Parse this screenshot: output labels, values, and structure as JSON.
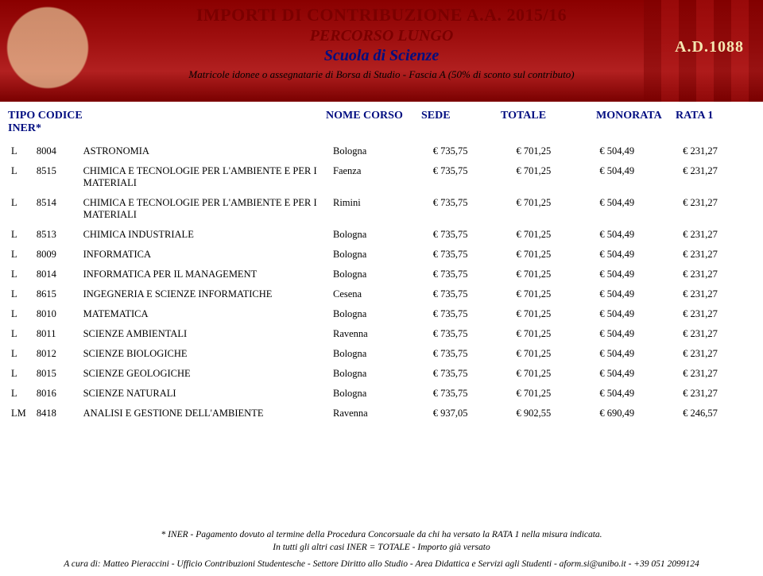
{
  "banner": {
    "title1": "IMPORTI DI CONTRIBUZIONE A.A. 2015/16",
    "title2": "PERCORSO LUNGO",
    "title3": "Scuola di Scienze",
    "title4": "Matricole idonee o assegnatarie di Borsa di Studio - Fascia A (50% di sconto sul contributo)",
    "seal_text": "A.D.1088",
    "colors": {
      "banner_bg_top": "#8a0000",
      "banner_bg_mid": "#b22020",
      "banner_bg_bot": "#7a0000",
      "title_red": "#7a0000",
      "title_blue": "#000d80",
      "seal_gold": "#f5e6b0"
    }
  },
  "headers": {
    "tipo": "TIPO",
    "codice": "CODICE",
    "nome": "NOME CORSO",
    "sede": "SEDE",
    "totale": "TOTALE",
    "monorata": "MONORATA",
    "rata1": "RATA 1",
    "iner": "INER*"
  },
  "rows": [
    {
      "tipo": "L",
      "codice": "8004",
      "nome": "ASTRONOMIA",
      "sede": "Bologna",
      "totale": "€ 735,75",
      "monorata": "€ 701,25",
      "rata1": "€ 504,49",
      "iner": "€ 231,27"
    },
    {
      "tipo": "L",
      "codice": "8515",
      "nome": "CHIMICA E TECNOLOGIE PER L'AMBIENTE E PER I MATERIALI",
      "sede": "Faenza",
      "totale": "€ 735,75",
      "monorata": "€ 701,25",
      "rata1": "€ 504,49",
      "iner": "€ 231,27"
    },
    {
      "tipo": "L",
      "codice": "8514",
      "nome": "CHIMICA E TECNOLOGIE PER L'AMBIENTE E PER I MATERIALI",
      "sede": "Rimini",
      "totale": "€ 735,75",
      "monorata": "€ 701,25",
      "rata1": "€ 504,49",
      "iner": "€ 231,27"
    },
    {
      "tipo": "L",
      "codice": "8513",
      "nome": "CHIMICA INDUSTRIALE",
      "sede": "Bologna",
      "totale": "€ 735,75",
      "monorata": "€ 701,25",
      "rata1": "€ 504,49",
      "iner": "€ 231,27"
    },
    {
      "tipo": "L",
      "codice": "8009",
      "nome": "INFORMATICA",
      "sede": "Bologna",
      "totale": "€ 735,75",
      "monorata": "€ 701,25",
      "rata1": "€ 504,49",
      "iner": "€ 231,27"
    },
    {
      "tipo": "L",
      "codice": "8014",
      "nome": "INFORMATICA PER IL MANAGEMENT",
      "sede": "Bologna",
      "totale": "€ 735,75",
      "monorata": "€ 701,25",
      "rata1": "€ 504,49",
      "iner": "€ 231,27"
    },
    {
      "tipo": "L",
      "codice": "8615",
      "nome": "INGEGNERIA E SCIENZE INFORMATICHE",
      "sede": "Cesena",
      "totale": "€ 735,75",
      "monorata": "€ 701,25",
      "rata1": "€ 504,49",
      "iner": "€ 231,27"
    },
    {
      "tipo": "L",
      "codice": "8010",
      "nome": "MATEMATICA",
      "sede": "Bologna",
      "totale": "€ 735,75",
      "monorata": "€ 701,25",
      "rata1": "€ 504,49",
      "iner": "€ 231,27"
    },
    {
      "tipo": "L",
      "codice": "8011",
      "nome": "SCIENZE AMBIENTALI",
      "sede": "Ravenna",
      "totale": "€ 735,75",
      "monorata": "€ 701,25",
      "rata1": "€ 504,49",
      "iner": "€ 231,27"
    },
    {
      "tipo": "L",
      "codice": "8012",
      "nome": "SCIENZE BIOLOGICHE",
      "sede": "Bologna",
      "totale": "€ 735,75",
      "monorata": "€ 701,25",
      "rata1": "€ 504,49",
      "iner": "€ 231,27"
    },
    {
      "tipo": "L",
      "codice": "8015",
      "nome": "SCIENZE GEOLOGICHE",
      "sede": "Bologna",
      "totale": "€ 735,75",
      "monorata": "€ 701,25",
      "rata1": "€ 504,49",
      "iner": "€ 231,27"
    },
    {
      "tipo": "L",
      "codice": "8016",
      "nome": "SCIENZE NATURALI",
      "sede": "Bologna",
      "totale": "€ 735,75",
      "monorata": "€ 701,25",
      "rata1": "€ 504,49",
      "iner": "€ 231,27"
    },
    {
      "tipo": "LM",
      "codice": "8418",
      "nome": "ANALISI E GESTIONE DELL'AMBIENTE",
      "sede": "Ravenna",
      "totale": "€ 937,05",
      "monorata": "€ 902,55",
      "rata1": "€ 690,49",
      "iner": "€ 246,57"
    }
  ],
  "footer": {
    "line1": "* INER - Pagamento dovuto al termine della Procedura Concorsuale da chi ha versato la RATA 1 nella misura indicata.",
    "line2": "In tutti gli altri casi  INER = TOTALE - Importo già versato",
    "line3": "A cura di: Matteo Pieraccini - Ufficio Contribuzioni Studentesche  - Settore Diritto allo Studio - Area Didattica e Servizi agli Studenti - aform.si@unibo.it - +39 051 2099124"
  }
}
